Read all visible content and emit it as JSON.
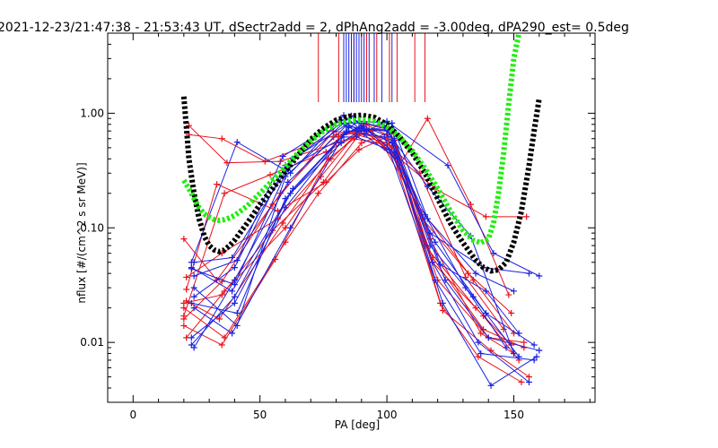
{
  "chart_data": {
    "type": "scatter",
    "title": "2021-12-23/21:47:38 - 21:53:43 UT, dSectr2add = 2, dPhAng2add = -3.00deg, dPA290_est=   0.5deg",
    "xlabel": "PA [deg]",
    "ylabel": "nflux [#/(cm^2 s sr MeV)]",
    "xlim": [
      -10,
      182
    ],
    "ylim": [
      0.003,
      5
    ],
    "yscale": "log",
    "x_ticks": [
      0,
      50,
      100,
      150
    ],
    "x_tick_labels": [
      "0",
      "50",
      "100",
      "150"
    ],
    "y_ticks": [
      0.01,
      0.1,
      1.0
    ],
    "y_tick_labels": [
      "0.01",
      "0.10",
      "1.00"
    ],
    "grid": false,
    "colors": {
      "red": "#e8141c",
      "blue": "#1a22e0",
      "black": "#000000",
      "green": "#22ee11"
    },
    "vertical_markers": {
      "red": [
        73,
        81,
        83,
        87,
        92,
        96,
        101,
        104,
        111,
        115
      ],
      "blue": [
        83,
        84,
        85,
        86,
        87,
        88,
        89,
        90,
        91,
        93,
        95,
        98,
        102
      ],
      "y_bottom": 1.25
    },
    "black_fit": {
      "x": [
        20,
        21,
        22,
        24,
        26,
        28,
        30,
        32,
        34,
        36,
        38,
        40,
        45,
        50,
        55,
        60,
        65,
        70,
        75,
        80,
        85,
        90,
        95,
        100,
        105,
        110,
        115,
        120,
        125,
        130,
        135,
        138,
        141,
        144,
        147,
        150,
        153,
        156,
        158,
        160
      ],
      "y": [
        1.4,
        0.75,
        0.4,
        0.2,
        0.12,
        0.085,
        0.07,
        0.064,
        0.062,
        0.064,
        0.07,
        0.078,
        0.11,
        0.16,
        0.22,
        0.31,
        0.43,
        0.59,
        0.74,
        0.87,
        0.94,
        0.96,
        0.92,
        0.8,
        0.62,
        0.45,
        0.3,
        0.18,
        0.11,
        0.074,
        0.052,
        0.045,
        0.042,
        0.043,
        0.05,
        0.075,
        0.14,
        0.35,
        0.7,
        1.35
      ]
    },
    "green_fit": {
      "x": [
        20,
        22,
        24,
        26,
        28,
        30,
        32,
        34,
        36,
        38,
        40,
        45,
        50,
        55,
        60,
        65,
        70,
        75,
        80,
        85,
        90,
        95,
        100,
        105,
        110,
        115,
        120,
        125,
        130,
        134,
        137,
        140,
        142,
        144,
        146,
        148,
        150,
        152
      ],
      "y": [
        0.26,
        0.22,
        0.18,
        0.15,
        0.132,
        0.124,
        0.118,
        0.116,
        0.118,
        0.122,
        0.128,
        0.155,
        0.2,
        0.26,
        0.34,
        0.45,
        0.57,
        0.7,
        0.8,
        0.86,
        0.88,
        0.85,
        0.76,
        0.62,
        0.47,
        0.33,
        0.22,
        0.14,
        0.095,
        0.078,
        0.074,
        0.08,
        0.11,
        0.2,
        0.45,
        1.2,
        3.0,
        5.0
      ]
    },
    "series": [
      {
        "color": "red",
        "x": [
          20,
          35,
          55,
          75,
          92,
          101,
          117,
          137,
          150
        ],
        "y": [
          0.022,
          0.026,
          0.095,
          0.25,
          0.8,
          0.72,
          0.08,
          0.012,
          0.008
        ]
      },
      {
        "color": "red",
        "x": [
          21,
          35,
          57,
          78,
          90,
          102,
          118,
          138,
          152
        ],
        "y": [
          0.037,
          0.06,
          0.12,
          0.4,
          0.72,
          0.7,
          0.05,
          0.017,
          0.007
        ]
      },
      {
        "color": "red",
        "x": [
          20,
          36,
          54,
          76,
          89,
          103,
          115,
          135,
          149
        ],
        "y": [
          0.017,
          0.2,
          0.29,
          0.46,
          0.66,
          0.58,
          0.07,
          0.02,
          0.0095
        ]
      },
      {
        "color": "red",
        "x": [
          22,
          37,
          58,
          80,
          94,
          104,
          119,
          139,
          155
        ],
        "y": [
          0.78,
          0.37,
          0.38,
          0.55,
          0.7,
          0.42,
          0.22,
          0.125,
          0.125
        ]
      },
      {
        "color": "red",
        "x": [
          20,
          33,
          55,
          79,
          88,
          100,
          113,
          131,
          146
        ],
        "y": [
          0.08,
          0.035,
          0.16,
          0.7,
          0.65,
          0.55,
          0.3,
          0.037,
          0.013
        ]
      },
      {
        "color": "red",
        "x": [
          21,
          36,
          60,
          74,
          91,
          100,
          121,
          136,
          153
        ],
        "y": [
          0.011,
          0.028,
          0.1,
          0.28,
          0.81,
          0.65,
          0.022,
          0.0075,
          0.0045
        ]
      },
      {
        "color": "red",
        "x": [
          20,
          35,
          56,
          81,
          90,
          99,
          112,
          134,
          150
        ],
        "y": [
          0.014,
          0.0095,
          0.053,
          0.62,
          0.75,
          0.5,
          0.16,
          0.035,
          0.012
        ]
      },
      {
        "color": "red",
        "x": [
          21,
          34,
          59,
          77,
          87,
          102,
          120,
          140,
          154
        ],
        "y": [
          0.023,
          0.016,
          0.11,
          0.4,
          0.6,
          0.52,
          0.035,
          0.011,
          0.01
        ]
      },
      {
        "color": "red",
        "x": [
          22,
          35,
          52,
          80,
          93,
          105,
          116,
          133,
          148
        ],
        "y": [
          0.65,
          0.6,
          0.38,
          0.65,
          0.72,
          0.35,
          0.9,
          0.16,
          0.026
        ]
      },
      {
        "color": "red",
        "x": [
          20,
          36,
          60,
          73,
          90,
          101,
          122,
          141,
          156
        ],
        "y": [
          0.02,
          0.011,
          0.075,
          0.2,
          0.55,
          0.68,
          0.019,
          0.0085,
          0.005
        ]
      },
      {
        "color": "red",
        "x": [
          21,
          33,
          57,
          76,
          89,
          100,
          118,
          138,
          154
        ],
        "y": [
          0.029,
          0.24,
          0.14,
          0.25,
          0.48,
          0.62,
          0.055,
          0.013,
          0.009
        ]
      },
      {
        "color": "red",
        "x": [
          20,
          35,
          58,
          79,
          91,
          103,
          114,
          132,
          149
        ],
        "y": [
          0.016,
          0.034,
          0.2,
          0.62,
          0.7,
          0.44,
          0.12,
          0.04,
          0.018
        ]
      },
      {
        "color": "blue",
        "x": [
          24,
          40,
          60,
          82,
          88,
          99,
          115,
          131,
          147
        ],
        "y": [
          0.025,
          0.045,
          0.35,
          0.82,
          0.7,
          0.75,
          0.13,
          0.03,
          0.009
        ]
      },
      {
        "color": "blue",
        "x": [
          23,
          41,
          62,
          83,
          89,
          100,
          116,
          133,
          150
        ],
        "y": [
          0.05,
          0.56,
          0.3,
          0.96,
          0.74,
          0.7,
          0.23,
          0.085,
          0.008
        ]
      },
      {
        "color": "blue",
        "x": [
          24,
          40,
          61,
          84,
          92,
          101,
          117,
          134,
          152
        ],
        "y": [
          0.009,
          0.035,
          0.25,
          0.78,
          0.72,
          0.72,
          0.07,
          0.025,
          0.0075
        ]
      },
      {
        "color": "blue",
        "x": [
          23,
          39,
          63,
          83,
          90,
          103,
          118,
          136,
          156
        ],
        "y": [
          0.045,
          0.028,
          0.22,
          0.65,
          0.78,
          0.45,
          0.05,
          0.01,
          0.0045
        ]
      },
      {
        "color": "blue",
        "x": [
          24,
          41,
          59,
          82,
          91,
          99,
          119,
          137,
          158
        ],
        "y": [
          0.038,
          0.052,
          0.42,
          0.88,
          0.66,
          0.62,
          0.035,
          0.008,
          0.007
        ]
      },
      {
        "color": "blue",
        "x": [
          23,
          40,
          60,
          85,
          89,
          102,
          116,
          135,
          150
        ],
        "y": [
          0.011,
          0.022,
          0.15,
          0.75,
          0.85,
          0.82,
          0.12,
          0.04,
          0.028
        ]
      },
      {
        "color": "blue",
        "x": [
          24,
          39,
          62,
          84,
          92,
          100,
          124,
          142,
          160
        ],
        "y": [
          0.02,
          0.012,
          0.1,
          0.7,
          0.7,
          0.85,
          0.35,
          0.06,
          0.038
        ]
      },
      {
        "color": "blue",
        "x": [
          23,
          40,
          61,
          83,
          88,
          101,
          119,
          139,
          158
        ],
        "y": [
          0.044,
          0.032,
          0.33,
          0.62,
          0.62,
          0.48,
          0.075,
          0.018,
          0.0095
        ]
      },
      {
        "color": "blue",
        "x": [
          24,
          41,
          60,
          86,
          90,
          103,
          121,
          139,
          152
        ],
        "y": [
          0.03,
          0.014,
          0.28,
          0.95,
          0.78,
          0.6,
          0.048,
          0.028,
          0.012
        ]
      },
      {
        "color": "blue",
        "x": [
          23,
          40,
          62,
          82,
          89,
          104,
          122,
          141,
          159
        ],
        "y": [
          0.0095,
          0.025,
          0.2,
          0.55,
          0.7,
          0.4,
          0.022,
          0.0042,
          0.0075
        ]
      },
      {
        "color": "blue",
        "x": [
          24,
          39,
          63,
          85,
          91,
          100,
          117,
          138,
          156
        ],
        "y": [
          0.05,
          0.055,
          0.4,
          0.82,
          0.82,
          0.75,
          0.09,
          0.045,
          0.04
        ]
      },
      {
        "color": "blue",
        "x": [
          23,
          41,
          60,
          84,
          90,
          102,
          123,
          140,
          160
        ],
        "y": [
          0.022,
          0.018,
          0.18,
          0.68,
          0.75,
          0.55,
          0.035,
          0.011,
          0.0085
        ]
      }
    ]
  }
}
